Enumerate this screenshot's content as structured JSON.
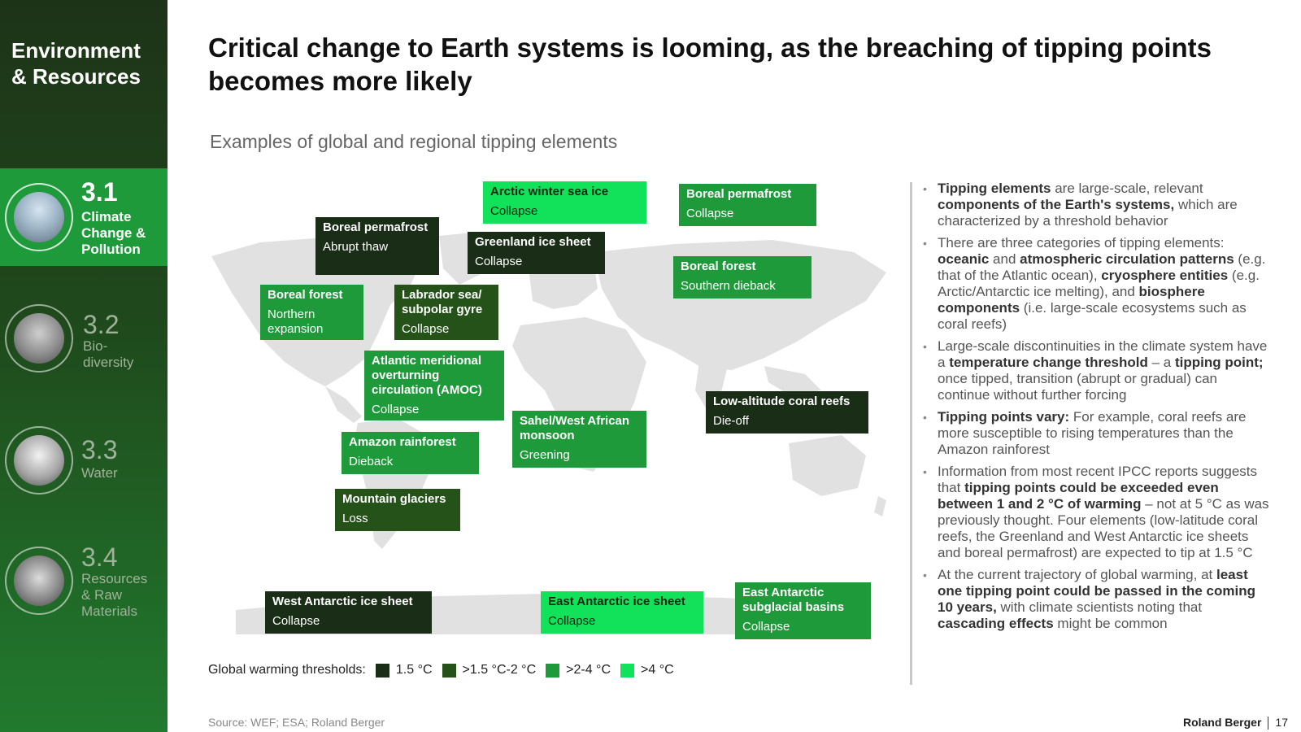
{
  "sidebar": {
    "section_title": "Environment & Resources",
    "items": [
      {
        "number": "3.1",
        "label": "Climate Change & Pollution",
        "icon": "factory-smokestack-icon"
      },
      {
        "number": "3.2",
        "label": "Bio-diversity",
        "icon": "bird-icon"
      },
      {
        "number": "3.3",
        "label": "Water",
        "icon": "water-drop-icon"
      },
      {
        "number": "3.4",
        "label": "Resources & Raw Materials",
        "icon": "mining-landscape-icon"
      }
    ]
  },
  "title": "Critical change to Earth systems is looming, as the breaching of tipping points becomes more likely",
  "subtitle": "Examples of global and regional tipping elements",
  "tipping_elements": [
    {
      "name": "Arctic winter sea ice",
      "effect": "Collapse",
      "threshold": ">4 °C"
    },
    {
      "name": "Boreal permafrost",
      "effect": "Collapse",
      "threshold": ">2-4 °C"
    },
    {
      "name": "Boreal permafrost",
      "effect": "Abrupt thaw",
      "threshold": "1.5 °C"
    },
    {
      "name": "Greenland ice sheet",
      "effect": "Collapse",
      "threshold": "1.5 °C"
    },
    {
      "name": "Boreal forest",
      "effect": "Southern dieback",
      "threshold": ">2-4 °C"
    },
    {
      "name": "Boreal forest",
      "effect": "Northern expansion",
      "threshold": ">2-4 °C"
    },
    {
      "name": "Labrador sea/ subpolar gyre",
      "effect": "Collapse",
      "threshold": ">1.5 °C-2 °C"
    },
    {
      "name": "Atlantic meridional overturning circulation (AMOC)",
      "effect": "Collapse",
      "threshold": ">2-4 °C"
    },
    {
      "name": "Low-altitude coral reefs",
      "effect": "Die-off",
      "threshold": "1.5 °C"
    },
    {
      "name": "Sahel/West African monsoon",
      "effect": "Greening",
      "threshold": ">2-4 °C"
    },
    {
      "name": "Amazon rainforest",
      "effect": "Dieback",
      "threshold": ">2-4 °C"
    },
    {
      "name": "Mountain glaciers",
      "effect": "Loss",
      "threshold": ">1.5 °C-2 °C"
    },
    {
      "name": "West Antarctic ice sheet",
      "effect": "Collapse",
      "threshold": "1.5 °C"
    },
    {
      "name": "East Antarctic ice sheet",
      "effect": "Collapse",
      "threshold": ">4 °C"
    },
    {
      "name": "East Antarctic subglacial basins",
      "effect": "Collapse",
      "threshold": ">2-4 °C"
    }
  ],
  "legend": {
    "label": "Global warming thresholds:",
    "items": [
      {
        "label": "1.5 °C",
        "color": "#1a2e17"
      },
      {
        "label": ">1.5 °C-2 °C",
        "color": "#245219"
      },
      {
        "label": ">2-4 °C",
        "color": "#1f9a3b"
      },
      {
        "label": ">4 °C",
        "color": "#12e25a"
      }
    ]
  },
  "bullets": [
    [
      {
        "b": "Tipping elements"
      },
      {
        "t": " are large-scale, relevant "
      },
      {
        "b": "components of the Earth's systems,"
      },
      {
        "t": " which are characterized by a threshold behavior"
      }
    ],
    [
      {
        "t": "There are three categories of tipping elements: "
      },
      {
        "b": "oceanic"
      },
      {
        "t": " and "
      },
      {
        "b": "atmospheric circulation patterns"
      },
      {
        "t": " (e.g. that of the Atlantic ocean), "
      },
      {
        "b": "cryosphere entities"
      },
      {
        "t": " (e.g. Arctic/Antarctic ice melting), and "
      },
      {
        "b": "biosphere components"
      },
      {
        "t": " (i.e. large-scale ecosystems such as coral reefs)"
      }
    ],
    [
      {
        "t": "Large-scale discontinuities in the climate system have a "
      },
      {
        "b": "temperature change threshold"
      },
      {
        "t": " – a "
      },
      {
        "b": "tipping point;"
      },
      {
        "t": " once tipped, transition (abrupt or gradual) can continue without further forcing"
      }
    ],
    [
      {
        "b": "Tipping points vary:"
      },
      {
        "t": " For example, coral reefs are more susceptible to rising temperatures than the Amazon rainforest"
      }
    ],
    [
      {
        "t": "Information from most recent IPCC reports suggests that "
      },
      {
        "b": "tipping points could be exceeded even between 1 and 2 °C of warming"
      },
      {
        "t": " – not at 5 °C as was previously thought. Four elements (low-latitude coral reefs, the Greenland and West Antarctic ice sheets and boreal permafrost) are expected to tip at 1.5 °C"
      }
    ],
    [
      {
        "t": "At the current trajectory of global warming, at "
      },
      {
        "b": "least one tipping point could be passed in the coming 10 years,"
      },
      {
        "t": " with climate scientists noting that "
      },
      {
        "b": "cascading effects"
      },
      {
        "t": " might be common"
      }
    ]
  ],
  "source": "Source: WEF; ESA; Roland Berger",
  "brand": "Roland Berger",
  "page_number": "17"
}
